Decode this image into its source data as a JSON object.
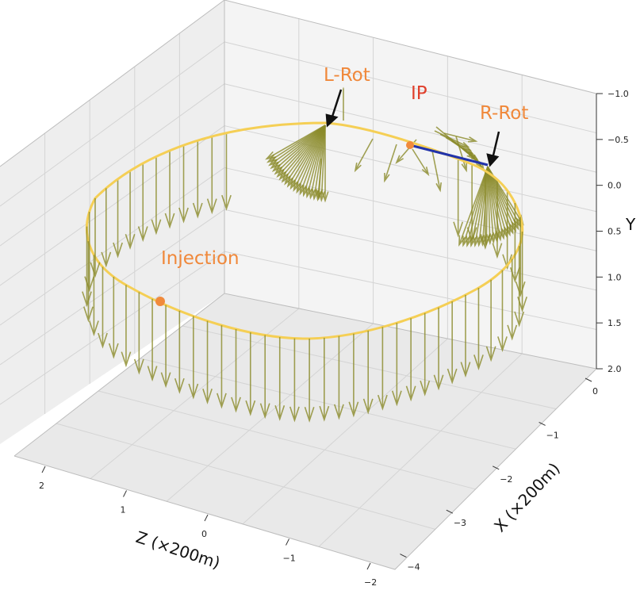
{
  "chart_data": {
    "type": "3d-line-with-vectors",
    "axes": {
      "x": {
        "label": "X (×200m)",
        "ticks": [
          "0",
          "−1",
          "−2",
          "−3",
          "−4"
        ]
      },
      "z": {
        "label": "Z (×200m)",
        "ticks": [
          "2",
          "1",
          "0",
          "−1",
          "−2"
        ]
      },
      "y": {
        "label": "Y",
        "ticks": [
          "−1.0",
          "−0.5",
          "0.0",
          "0.5",
          "1.0",
          "1.5",
          "2.0"
        ]
      }
    },
    "grid": true,
    "annotations": {
      "l_rot": "L-Rot",
      "ip": "IP",
      "r_rot": "R-Rot",
      "injection": "Injection"
    },
    "colors": {
      "ring": "#f5cf55",
      "vectors": "#8b8b2a",
      "ip_segment": "#2233aa",
      "marker": "#f08a3c",
      "label_orange": "#f0883a",
      "label_red": "#e0402c",
      "pane": "#eaeaea",
      "pane_side": "#f3f3f3"
    }
  }
}
